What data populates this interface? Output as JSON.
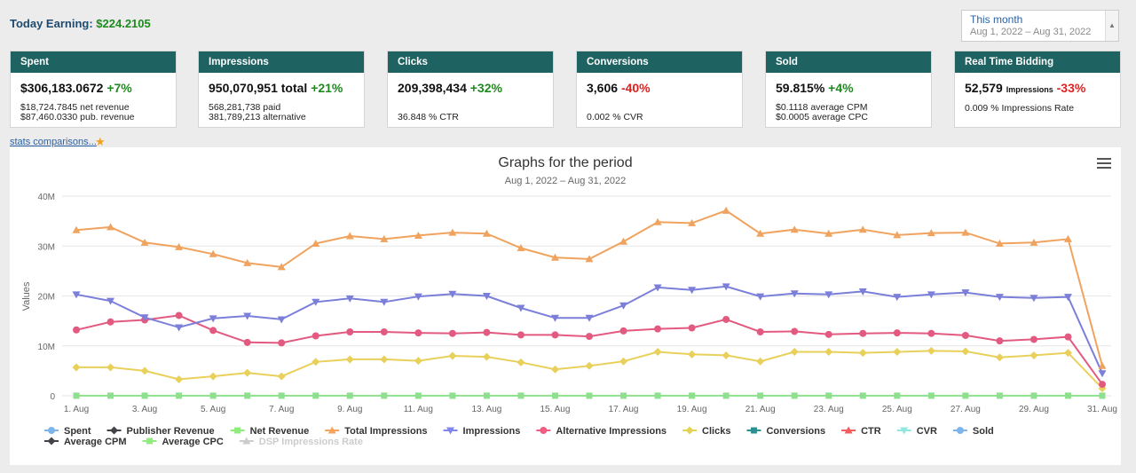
{
  "header": {
    "today_label": "Today Earning:",
    "today_value": "$224.2105"
  },
  "date_range": {
    "label": "This month",
    "dates": "Aug 1, 2022 – Aug 31, 2022"
  },
  "cards": [
    {
      "title": "Spent",
      "value": "$306,183.0672",
      "change": "+7%",
      "line1": "$18,724.7845 net revenue",
      "line2": "$87,460.0330 pub. revenue"
    },
    {
      "title": "Impressions",
      "value": "950,070,951 total",
      "change": "+21%",
      "line1": "568,281,738 paid",
      "line2": "381,789,213 alternative"
    },
    {
      "title": "Clicks",
      "value": "209,398,434",
      "change": "+32%",
      "line1": "",
      "line2": "36.848 % CTR"
    },
    {
      "title": "Conversions",
      "value": "3,606",
      "change": "-40%",
      "line1": "",
      "line2": "0.002 % CVR"
    },
    {
      "title": "Sold",
      "value": "59.815%",
      "change": "+4%",
      "line1": "$0.1118 average CPM",
      "line2": "$0.0005 average CPC"
    },
    {
      "title": "Real Time Bidding",
      "value": "52,579",
      "value_suffix": "Impressions",
      "change": "-33%",
      "line1": "0.009 % Impressions Rate",
      "line2": ""
    }
  ],
  "stats_link": "stats comparisons...",
  "icons": {
    "star": "star-icon",
    "menu": "hamburger-menu-icon",
    "dropdown": "dropdown-caret-icon"
  },
  "colors": {
    "card_header": "#1f6262",
    "positive": "#1e8a1e",
    "negative": "#dd2222"
  },
  "chart_data": {
    "type": "line",
    "title": "Graphs for the period",
    "subtitle": "Aug 1, 2022 – Aug 31, 2022",
    "ylabel": "Values",
    "ylim": [
      0,
      40000000
    ],
    "yticks": [
      "0",
      "10M",
      "20M",
      "30M",
      "40M"
    ],
    "x": [
      "1. Aug",
      "2. Aug",
      "3. Aug",
      "4. Aug",
      "5. Aug",
      "6. Aug",
      "7. Aug",
      "8. Aug",
      "9. Aug",
      "10. Aug",
      "11. Aug",
      "12. Aug",
      "13. Aug",
      "14. Aug",
      "15. Aug",
      "16. Aug",
      "17. Aug",
      "18. Aug",
      "19. Aug",
      "20. Aug",
      "21. Aug",
      "22. Aug",
      "23. Aug",
      "24. Aug",
      "25. Aug",
      "26. Aug",
      "27. Aug",
      "28. Aug",
      "29. Aug",
      "30. Aug",
      "31. Aug"
    ],
    "xtick_labels": [
      "1. Aug",
      "3. Aug",
      "5. Aug",
      "7. Aug",
      "9. Aug",
      "11. Aug",
      "13. Aug",
      "15. Aug",
      "17. Aug",
      "19. Aug",
      "21. Aug",
      "23. Aug",
      "25. Aug",
      "27. Aug",
      "29. Aug",
      "31. Aug"
    ],
    "series": [
      {
        "name": "Total Impressions",
        "color": "#f0a35e",
        "marker": "triangle-up",
        "values": [
          33200000,
          33800000,
          30700000,
          29800000,
          28400000,
          26600000,
          25800000,
          30500000,
          32000000,
          31400000,
          32100000,
          32700000,
          32500000,
          29600000,
          27700000,
          27400000,
          30900000,
          34800000,
          34600000,
          37100000,
          32500000,
          33300000,
          32500000,
          33300000,
          32200000,
          32600000,
          32700000,
          30500000,
          30700000,
          31400000,
          6000000
        ]
      },
      {
        "name": "Impressions",
        "color": "#7b7fd9",
        "marker": "triangle-down",
        "values": [
          20300000,
          19000000,
          15700000,
          13700000,
          15500000,
          16000000,
          15300000,
          18800000,
          19500000,
          18800000,
          19900000,
          20400000,
          20000000,
          17600000,
          15600000,
          15600000,
          18100000,
          21700000,
          21200000,
          21900000,
          19900000,
          20500000,
          20300000,
          20900000,
          19800000,
          20300000,
          20700000,
          19800000,
          19600000,
          19800000,
          4500000
        ]
      },
      {
        "name": "Alternative Impressions",
        "color": "#e35a80",
        "marker": "circle",
        "values": [
          13200000,
          14800000,
          15200000,
          16100000,
          13100000,
          10700000,
          10600000,
          12000000,
          12800000,
          12800000,
          12600000,
          12500000,
          12700000,
          12200000,
          12200000,
          11900000,
          13000000,
          13400000,
          13600000,
          15300000,
          12800000,
          12900000,
          12300000,
          12500000,
          12600000,
          12500000,
          12100000,
          11000000,
          11300000,
          11800000,
          2300000
        ]
      },
      {
        "name": "Clicks",
        "color": "#e8d05a",
        "marker": "diamond",
        "values": [
          5700000,
          5700000,
          5000000,
          3300000,
          3900000,
          4600000,
          3900000,
          6800000,
          7300000,
          7300000,
          7000000,
          8000000,
          7800000,
          6700000,
          5300000,
          6000000,
          6900000,
          8800000,
          8300000,
          8100000,
          6900000,
          8800000,
          8800000,
          8600000,
          8800000,
          9000000,
          8900000,
          7700000,
          8100000,
          8600000,
          1500000
        ]
      },
      {
        "name": "Net Revenue",
        "color": "#8ee08e",
        "marker": "square",
        "values": [
          18725,
          18725,
          18725,
          18725,
          18725,
          18725,
          18725,
          18725,
          18725,
          18725,
          18725,
          18725,
          18725,
          18725,
          18725,
          18725,
          18725,
          18725,
          18725,
          18725,
          18725,
          18725,
          18725,
          18725,
          18725,
          18725,
          18725,
          18725,
          18725,
          18725,
          18725
        ]
      }
    ],
    "legend": {
      "placement": "bottom",
      "items": [
        {
          "name": "Spent",
          "color": "#7cb5ec",
          "marker": "circle"
        },
        {
          "name": "Publisher Revenue",
          "color": "#434348",
          "marker": "diamond"
        },
        {
          "name": "Net Revenue",
          "color": "#90ed7d",
          "marker": "square"
        },
        {
          "name": "Total Impressions",
          "color": "#f7a35c",
          "marker": "triangle-up"
        },
        {
          "name": "Impressions",
          "color": "#8085e9",
          "marker": "triangle-down"
        },
        {
          "name": "Alternative Impressions",
          "color": "#f15c80",
          "marker": "circle"
        },
        {
          "name": "Clicks",
          "color": "#e4d354",
          "marker": "diamond"
        },
        {
          "name": "Conversions",
          "color": "#2b908f",
          "marker": "square"
        },
        {
          "name": "CTR",
          "color": "#f45b5b",
          "marker": "triangle-up"
        },
        {
          "name": "CVR",
          "color": "#91e8e1",
          "marker": "triangle-down"
        },
        {
          "name": "Sold",
          "color": "#7cb5ec",
          "marker": "circle"
        },
        {
          "name": "Average CPM",
          "color": "#434348",
          "marker": "diamond"
        },
        {
          "name": "Average CPC",
          "color": "#90ed7d",
          "marker": "square"
        },
        {
          "name": "DSP Impressions Rate",
          "color": "#cccccc",
          "marker": "triangle-up",
          "disabled": true
        }
      ]
    },
    "grid": true
  }
}
